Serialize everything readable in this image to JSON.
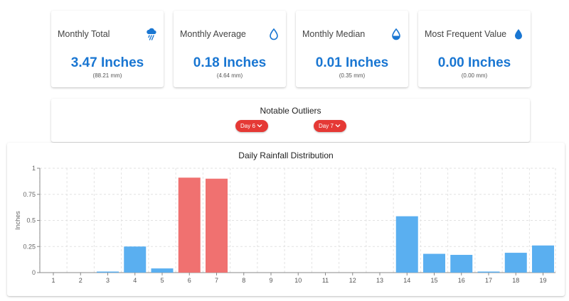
{
  "stats": [
    {
      "title": "Monthly Total",
      "value": "3.47 Inches",
      "sub": "(88.21 mm)",
      "icon": "rain-cloud-icon"
    },
    {
      "title": "Monthly Average",
      "value": "0.18 Inches",
      "sub": "(4.64 mm)",
      "icon": "drop-outline-icon"
    },
    {
      "title": "Monthly Median",
      "value": "0.01 Inches",
      "sub": "(0.35 mm)",
      "icon": "drop-half-icon"
    },
    {
      "title": "Most Frequent Value",
      "value": "0.00 Inches",
      "sub": "(0.00 mm)",
      "icon": "drop-filled-icon"
    }
  ],
  "outliers": {
    "title": "Notable Outliers",
    "chips": [
      "Day 6",
      "Day 7"
    ]
  },
  "colors": {
    "accent": "#1976d2",
    "bar_normal": "#5aaff0",
    "bar_outlier": "#f07170",
    "chip": "#e53935"
  },
  "chart_data": {
    "type": "bar",
    "title": "Daily Rainfall Distribution",
    "ylabel": "Inches",
    "xlabel": "",
    "categories": [
      "1",
      "2",
      "3",
      "4",
      "5",
      "6",
      "7",
      "8",
      "9",
      "10",
      "11",
      "12",
      "13",
      "14",
      "15",
      "16",
      "17",
      "18",
      "19"
    ],
    "values": [
      0,
      0,
      0.01,
      0.25,
      0.04,
      0.91,
      0.9,
      0,
      0,
      0,
      0,
      0,
      0,
      0.54,
      0.18,
      0.17,
      0.01,
      0.19,
      0.26
    ],
    "outlier_categories": [
      "6",
      "7"
    ],
    "ylim": [
      0,
      1
    ],
    "yticks": [
      "0",
      "0.25",
      "0.5",
      "0.75",
      "1"
    ],
    "grid": true,
    "legend": "none"
  }
}
